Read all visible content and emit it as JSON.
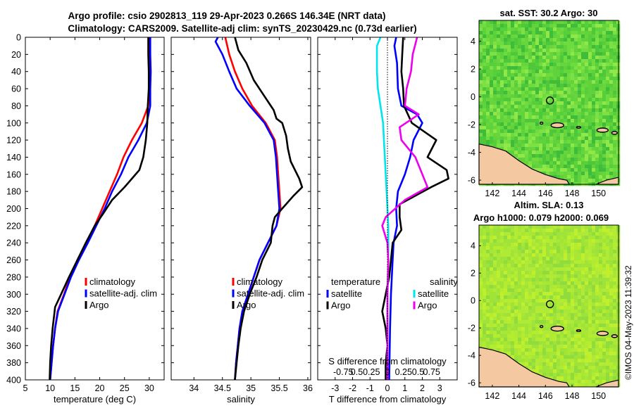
{
  "title_line1": "Argo profile: csio 2902813_119 29-Apr-2023 0.266S 146.34E (NRT data)",
  "title_line2": "Climatology: CARS2009. Satellite-adj clim: synTS_20230429.nc (0.73d earlier)",
  "copyright": "©IMOS 04-May-2023 11:39:32",
  "colors": {
    "climatology": "#ff0000",
    "satellite": "#0000ff",
    "argo": "#000000",
    "sat_salinity": "#00e5ee",
    "argo_salinity": "#ee00ee",
    "land": "#f4c8a0"
  },
  "chart_data": [
    {
      "type": "line",
      "name": "temperature",
      "xlabel": "temperature (deg C)",
      "ylabel": "",
      "xlim": [
        5,
        33
      ],
      "ylim": [
        400,
        0
      ],
      "xticks": [
        "5",
        "10",
        "15",
        "20",
        "25",
        "30"
      ],
      "xtick_values": [
        5,
        10,
        15,
        20,
        25,
        30
      ],
      "yticks": [
        "0",
        "20",
        "40",
        "60",
        "80",
        "100",
        "120",
        "140",
        "160",
        "180",
        "200",
        "220",
        "240",
        "260",
        "280",
        "300",
        "320",
        "340",
        "360",
        "380",
        "400"
      ],
      "ytick_values": [
        0,
        20,
        40,
        60,
        80,
        100,
        120,
        140,
        160,
        180,
        200,
        220,
        240,
        260,
        280,
        300,
        320,
        340,
        360,
        380,
        400
      ],
      "legend": [
        "climatology",
        "satellite-adj. clim",
        "Argo"
      ],
      "series": [
        {
          "name": "climatology",
          "color": "#ff0000",
          "points": [
            [
              29.9,
              0
            ],
            [
              30.0,
              20
            ],
            [
              30.0,
              40
            ],
            [
              30.0,
              60
            ],
            [
              29.8,
              80
            ],
            [
              28.5,
              100
            ],
            [
              26.5,
              120
            ],
            [
              24.8,
              140
            ],
            [
              23.5,
              160
            ],
            [
              22.0,
              180
            ],
            [
              20.5,
              200
            ],
            [
              19.0,
              220
            ],
            [
              17.3,
              240
            ],
            [
              15.5,
              260
            ],
            [
              14.0,
              280
            ],
            [
              12.8,
              300
            ],
            [
              11.5,
              320
            ],
            [
              11.0,
              340
            ],
            [
              10.6,
              360
            ],
            [
              10.3,
              380
            ],
            [
              10.0,
              400
            ]
          ]
        },
        {
          "name": "satellite-adj. clim",
          "color": "#0000ff",
          "points": [
            [
              30.2,
              0
            ],
            [
              30.2,
              20
            ],
            [
              30.3,
              40
            ],
            [
              30.2,
              60
            ],
            [
              30.2,
              80
            ],
            [
              29.5,
              100
            ],
            [
              27.8,
              120
            ],
            [
              25.8,
              140
            ],
            [
              24.3,
              160
            ],
            [
              22.5,
              180
            ],
            [
              21.0,
              200
            ],
            [
              19.3,
              220
            ],
            [
              17.6,
              240
            ],
            [
              15.8,
              260
            ],
            [
              14.2,
              280
            ],
            [
              12.9,
              300
            ],
            [
              11.6,
              320
            ],
            [
              11.0,
              340
            ],
            [
              10.6,
              360
            ],
            [
              10.3,
              380
            ],
            [
              10.0,
              400
            ]
          ]
        },
        {
          "name": "Argo",
          "color": "#000000",
          "points": [
            [
              29.8,
              0
            ],
            [
              29.8,
              20
            ],
            [
              29.9,
              40
            ],
            [
              29.9,
              60
            ],
            [
              29.7,
              80
            ],
            [
              29.6,
              100
            ],
            [
              29.3,
              120
            ],
            [
              28.8,
              140
            ],
            [
              28.0,
              155
            ],
            [
              26.5,
              165
            ],
            [
              25.0,
              175
            ],
            [
              22.5,
              190
            ],
            [
              20.8,
              205
            ],
            [
              19.0,
              220
            ],
            [
              17.2,
              240
            ],
            [
              15.5,
              260
            ],
            [
              13.8,
              280
            ],
            [
              12.2,
              300
            ],
            [
              11.0,
              315
            ],
            [
              10.5,
              340
            ],
            [
              10.2,
              360
            ],
            [
              10.0,
              380
            ],
            [
              9.9,
              400
            ]
          ]
        }
      ]
    },
    {
      "type": "line",
      "name": "salinity",
      "xlabel": "salinity",
      "xlim": [
        33.6,
        36.05
      ],
      "ylim": [
        400,
        0
      ],
      "xticks": [
        "34",
        "34.5",
        "35",
        "35.5",
        "36"
      ],
      "xtick_values": [
        34,
        34.5,
        35,
        35.5,
        36
      ],
      "legend": [
        "climatology",
        "satellite-adj. clim",
        "Argo"
      ],
      "series": [
        {
          "name": "climatology",
          "color": "#ff0000",
          "points": [
            [
              34.55,
              0
            ],
            [
              34.62,
              20
            ],
            [
              34.72,
              40
            ],
            [
              34.85,
              60
            ],
            [
              35.02,
              80
            ],
            [
              35.26,
              100
            ],
            [
              35.42,
              120
            ],
            [
              35.46,
              140
            ],
            [
              35.48,
              160
            ],
            [
              35.5,
              180
            ],
            [
              35.52,
              200
            ],
            [
              35.45,
              220
            ],
            [
              35.3,
              240
            ],
            [
              35.15,
              260
            ],
            [
              35.05,
              280
            ],
            [
              34.95,
              300
            ],
            [
              34.85,
              320
            ],
            [
              34.8,
              340
            ],
            [
              34.77,
              360
            ],
            [
              34.74,
              380
            ],
            [
              34.72,
              400
            ]
          ]
        },
        {
          "name": "satellite-adj. clim",
          "color": "#0000ff",
          "points": [
            [
              34.42,
              0
            ],
            [
              34.38,
              5
            ],
            [
              34.5,
              20
            ],
            [
              34.62,
              40
            ],
            [
              34.75,
              60
            ],
            [
              34.98,
              80
            ],
            [
              35.24,
              100
            ],
            [
              35.4,
              120
            ],
            [
              35.44,
              140
            ],
            [
              35.46,
              160
            ],
            [
              35.48,
              180
            ],
            [
              35.5,
              200
            ],
            [
              35.45,
              220
            ],
            [
              35.3,
              240
            ],
            [
              35.15,
              260
            ],
            [
              35.05,
              280
            ],
            [
              34.95,
              300
            ],
            [
              34.85,
              320
            ],
            [
              34.8,
              340
            ],
            [
              34.77,
              360
            ],
            [
              34.74,
              380
            ],
            [
              34.72,
              400
            ]
          ]
        },
        {
          "name": "Argo",
          "color": "#000000",
          "points": [
            [
              34.72,
              0
            ],
            [
              34.78,
              15
            ],
            [
              34.92,
              30
            ],
            [
              35.05,
              50
            ],
            [
              35.25,
              70
            ],
            [
              35.4,
              85
            ],
            [
              35.45,
              95
            ],
            [
              35.55,
              100
            ],
            [
              35.62,
              115
            ],
            [
              35.65,
              130
            ],
            [
              35.7,
              145
            ],
            [
              35.85,
              165
            ],
            [
              35.9,
              175
            ],
            [
              35.75,
              185
            ],
            [
              35.55,
              200
            ],
            [
              35.42,
              210
            ],
            [
              35.38,
              220
            ],
            [
              35.35,
              240
            ],
            [
              35.2,
              260
            ],
            [
              35.1,
              280
            ],
            [
              34.98,
              300
            ],
            [
              34.88,
              320
            ],
            [
              34.82,
              340
            ],
            [
              34.78,
              360
            ],
            [
              34.75,
              380
            ],
            [
              34.72,
              400
            ]
          ]
        }
      ]
    },
    {
      "type": "line",
      "name": "differences",
      "xlabel": "T difference from climatology",
      "top_xlabel": "S difference from climatology",
      "xlim": [
        -4,
        4
      ],
      "ylim": [
        400,
        0
      ],
      "xticks": [
        "-3",
        "-2",
        "-1",
        "0",
        "1",
        "2",
        "3"
      ],
      "xtick_values": [
        -3,
        -2,
        -1,
        0,
        1,
        2,
        3
      ],
      "s_ticks": [
        "-0.75",
        "0.5",
        "0.25",
        "0",
        "0.25",
        "0.5",
        "0.75"
      ],
      "legend_temperature_title": "temperature",
      "legend_salinity_title": "salinity",
      "legend_temperature": [
        "satellite",
        "Argo"
      ],
      "legend_salinity": [
        "satellite",
        "Argo"
      ],
      "series": [
        {
          "name": "temperature satellite",
          "color": "#0000ff",
          "points": [
            [
              0.5,
              0
            ],
            [
              0.4,
              10
            ],
            [
              0.55,
              30
            ],
            [
              0.6,
              60
            ],
            [
              0.8,
              80
            ],
            [
              1.7,
              90
            ],
            [
              2.0,
              100
            ],
            [
              1.5,
              120
            ],
            [
              1.3,
              140
            ],
            [
              1.0,
              160
            ],
            [
              0.6,
              180
            ],
            [
              0.5,
              200
            ],
            [
              0.55,
              220
            ],
            [
              0.35,
              240
            ],
            [
              0.3,
              260
            ],
            [
              0.25,
              280
            ],
            [
              0.2,
              300
            ],
            [
              0.15,
              340
            ],
            [
              0.1,
              400
            ]
          ]
        },
        {
          "name": "temperature Argo",
          "color": "#000000",
          "points": [
            [
              0.9,
              0
            ],
            [
              0.85,
              20
            ],
            [
              0.8,
              40
            ],
            [
              0.9,
              60
            ],
            [
              0.95,
              80
            ],
            [
              1.4,
              100
            ],
            [
              2.8,
              120
            ],
            [
              2.3,
              140
            ],
            [
              3.4,
              155
            ],
            [
              3.5,
              165
            ],
            [
              2.5,
              175
            ],
            [
              0.7,
              195
            ],
            [
              0.7,
              210
            ],
            [
              0.8,
              225
            ],
            [
              0.3,
              240
            ],
            [
              0.2,
              260
            ],
            [
              0.1,
              280
            ],
            [
              -0.1,
              300
            ],
            [
              -0.3,
              320
            ],
            [
              -0.1,
              340
            ],
            [
              0.0,
              360
            ],
            [
              -0.1,
              380
            ],
            [
              -0.1,
              400
            ]
          ]
        },
        {
          "name": "salinity satellite",
          "color": "#00e5ee",
          "points": [
            [
              -0.4,
              0
            ],
            [
              -0.6,
              10
            ],
            [
              -0.6,
              40
            ],
            [
              -0.55,
              60
            ],
            [
              -0.4,
              80
            ],
            [
              -0.25,
              100
            ],
            [
              -0.2,
              120
            ],
            [
              -0.15,
              140
            ],
            [
              -0.1,
              160
            ],
            [
              -0.05,
              180
            ],
            [
              0.0,
              200
            ],
            [
              0.05,
              220
            ],
            [
              0.05,
              260
            ],
            [
              0.0,
              300
            ],
            [
              0.0,
              350
            ],
            [
              0.0,
              400
            ]
          ]
        },
        {
          "name": "salinity Argo",
          "color": "#ee00ee",
          "points": [
            [
              1.7,
              0
            ],
            [
              1.45,
              20
            ],
            [
              1.35,
              40
            ],
            [
              1.1,
              60
            ],
            [
              1.0,
              80
            ],
            [
              1.8,
              90
            ],
            [
              0.7,
              105
            ],
            [
              0.8,
              120
            ],
            [
              1.6,
              140
            ],
            [
              2.0,
              160
            ],
            [
              2.3,
              175
            ],
            [
              1.0,
              190
            ],
            [
              -0.1,
              210
            ],
            [
              -0.3,
              220
            ],
            [
              0.0,
              240
            ],
            [
              0.05,
              260
            ],
            [
              0.0,
              300
            ],
            [
              0.0,
              350
            ],
            [
              0.0,
              400
            ]
          ]
        }
      ]
    },
    {
      "type": "heatmap",
      "name": "sat_sst_map",
      "title": "sat. SST: 30.2 Argo: 30",
      "xlim": [
        141,
        151.5
      ],
      "ylim": [
        -6.3,
        5.5
      ],
      "xticks": [
        "142",
        "144",
        "146",
        "148",
        "150"
      ],
      "xtick_values": [
        142,
        144,
        146,
        148,
        150
      ],
      "yticks": [
        "4",
        "2",
        "0",
        "-2",
        "-4",
        "-6"
      ],
      "ytick_values": [
        4,
        2,
        0,
        -2,
        -4,
        -6
      ],
      "argo_position": [
        146.34,
        -0.266
      ]
    },
    {
      "type": "heatmap",
      "name": "altim_sla_map",
      "title": "Altim. SLA: 0.13",
      "subtitle": "Argo h1000: 0.079 h2000: 0.069",
      "xlim": [
        141,
        151.5
      ],
      "ylim": [
        -6.3,
        5.5
      ],
      "xticks": [
        "142",
        "144",
        "146",
        "148",
        "150"
      ],
      "xtick_values": [
        142,
        144,
        146,
        148,
        150
      ],
      "yticks": [
        "4",
        "2",
        "0",
        "-2",
        "-4",
        "-6"
      ],
      "ytick_values": [
        4,
        2,
        0,
        -2,
        -4,
        -6
      ],
      "argo_position": [
        146.34,
        -0.266
      ]
    }
  ]
}
